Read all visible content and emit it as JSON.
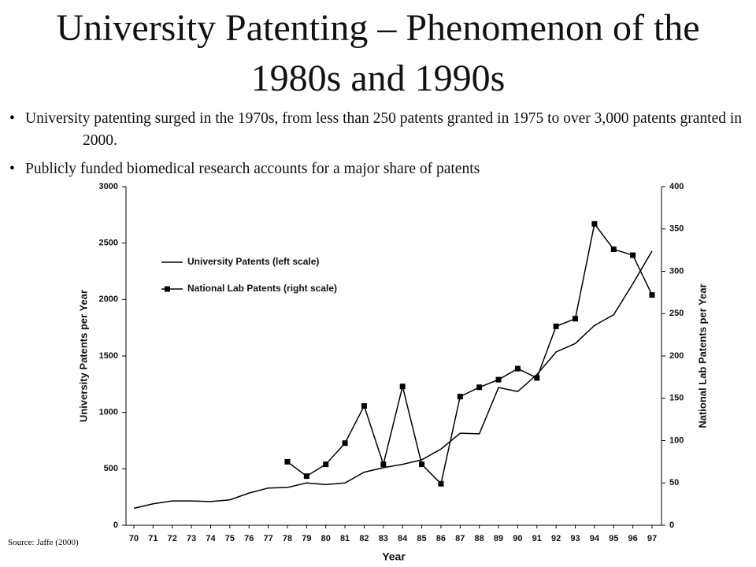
{
  "header": {
    "title": "University Patenting – Phenomenon of the 1980s and 1990s"
  },
  "bullets": [
    "University patenting surged in the 1970s, from less than 250 patents granted in 1975 to over 3,000 patents granted in 2000.",
    "Publicly funded biomedical research accounts for a major share of patents"
  ],
  "source": "Source: Jaffe (2000)",
  "chart_data": {
    "type": "line",
    "xlabel": "Year",
    "ylabel": "University Patents per Year",
    "y2label": "National Lab Patents per Year",
    "categories": [
      "70",
      "71",
      "72",
      "73",
      "74",
      "75",
      "76",
      "77",
      "78",
      "79",
      "80",
      "81",
      "82",
      "83",
      "84",
      "85",
      "86",
      "87",
      "88",
      "89",
      "90",
      "91",
      "92",
      "93",
      "94",
      "95",
      "96",
      "97"
    ],
    "series": [
      {
        "name": "University Patents (left scale)",
        "color": "#000000",
        "marker": "none",
        "values": [
          150,
          190,
          215,
          215,
          210,
          225,
          285,
          330,
          335,
          375,
          360,
          375,
          470,
          510,
          540,
          580,
          675,
          815,
          810,
          1220,
          1185,
          1335,
          1535,
          1610,
          1770,
          1865,
          2140,
          2430
        ]
      },
      {
        "name": "National Lab Patents (right scale)",
        "color": "#000000",
        "marker": "square",
        "axis": "y2",
        "values": [
          null,
          null,
          null,
          null,
          null,
          null,
          null,
          null,
          75,
          58,
          72,
          97,
          141,
          72,
          164,
          72,
          49,
          152,
          163,
          172,
          185,
          174,
          235,
          244,
          356,
          326,
          319,
          272
        ]
      }
    ],
    "ylim": [
      0,
      3000
    ],
    "yticks": [
      0,
      500,
      1000,
      1500,
      2000,
      2500,
      3000
    ],
    "y2lim": [
      0,
      400
    ],
    "y2ticks": [
      0,
      50,
      100,
      150,
      200,
      250,
      300,
      350,
      400
    ]
  }
}
